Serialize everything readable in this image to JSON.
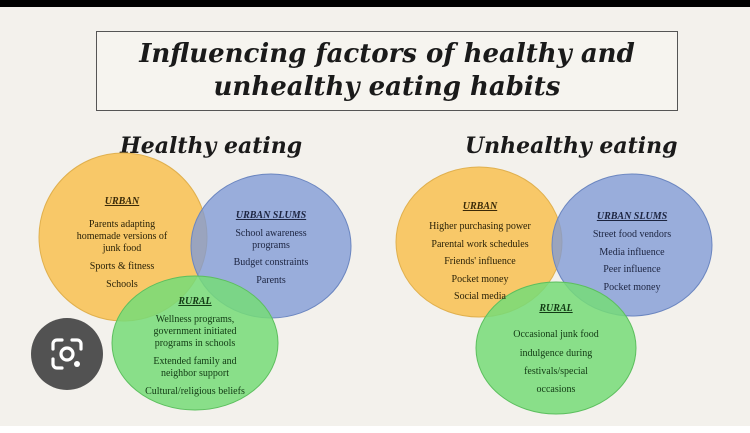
{
  "title": {
    "line1": "Influencing factors of healthy and",
    "line2": "unhealthy eating habits"
  },
  "colors": {
    "urban": "#f9c45c",
    "urban_slums": "#7f9ad6",
    "rural": "#76dc78",
    "background": "#f3f1ec"
  },
  "healthy": {
    "title": "Healthy eating",
    "urban": {
      "heading": "URBAN",
      "items": [
        "Parents adapting",
        "homemade versions of",
        "junk food",
        "Sports & fitness",
        "Schools"
      ]
    },
    "urban_slums": {
      "heading": "URBAN SLUMS",
      "items": [
        "School awareness",
        "programs",
        "Budget constraints",
        "Parents"
      ]
    },
    "rural": {
      "heading": "RURAL",
      "items": [
        "Wellness programs,",
        "government initiated",
        "programs in schools",
        "Extended family and",
        "neighbor support",
        "Cultural/religious beliefs"
      ]
    }
  },
  "unhealthy": {
    "title": "Unhealthy eating",
    "urban": {
      "heading": "URBAN",
      "items": [
        "Higher purchasing power",
        "Parental work schedules",
        "Friends' influence",
        "Pocket money",
        "Social media"
      ]
    },
    "urban_slums": {
      "heading": "URBAN SLUMS",
      "items": [
        "Street food vendors",
        "Media influence",
        "Peer influence",
        "Pocket money"
      ]
    },
    "rural": {
      "heading": "RURAL",
      "items": [
        "Occasional junk food",
        "indulgence during",
        "festivals/special",
        "occasions"
      ]
    }
  },
  "overlay_icon": "google-lens-icon"
}
